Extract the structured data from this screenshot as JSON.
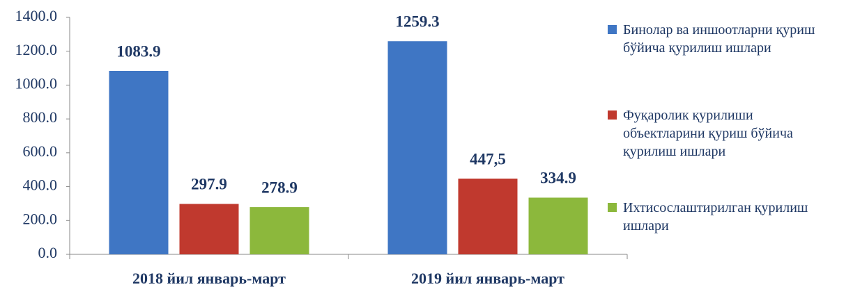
{
  "chart_data": {
    "type": "bar",
    "categories": [
      "2018 йил январь-март",
      "2019 йил январь-март"
    ],
    "series": [
      {
        "name": "Бинолар ва иншоотларни қуриш бўйича қурилиш ишлари",
        "color": "#3f76c4",
        "values": [
          1083.9,
          1259.3
        ]
      },
      {
        "name": "Фуқаролик қурилиши объектларини қуриш бўйича қурилиш ишлари",
        "color": "#c0392e",
        "values": [
          297.9,
          447.5
        ],
        "value_labels": [
          "297.9",
          "447,5"
        ]
      },
      {
        "name": "Ихтисослаштирилган қурилиш ишлари",
        "color": "#8cb83c",
        "values": [
          278.9,
          334.9
        ]
      }
    ],
    "ylim": [
      0,
      1400
    ],
    "yticks": [
      {
        "value": 0,
        "label": "0.0"
      },
      {
        "value": 200,
        "label": "200.0"
      },
      {
        "value": 400,
        "label": "400.0"
      },
      {
        "value": 600,
        "label": "600.0"
      },
      {
        "value": 800,
        "label": "800.0"
      },
      {
        "value": 1000,
        "label": "1000.0"
      },
      {
        "value": 1200,
        "label": "1200.0"
      },
      {
        "value": 1400,
        "label": "1400.0"
      }
    ],
    "legend": "right"
  }
}
